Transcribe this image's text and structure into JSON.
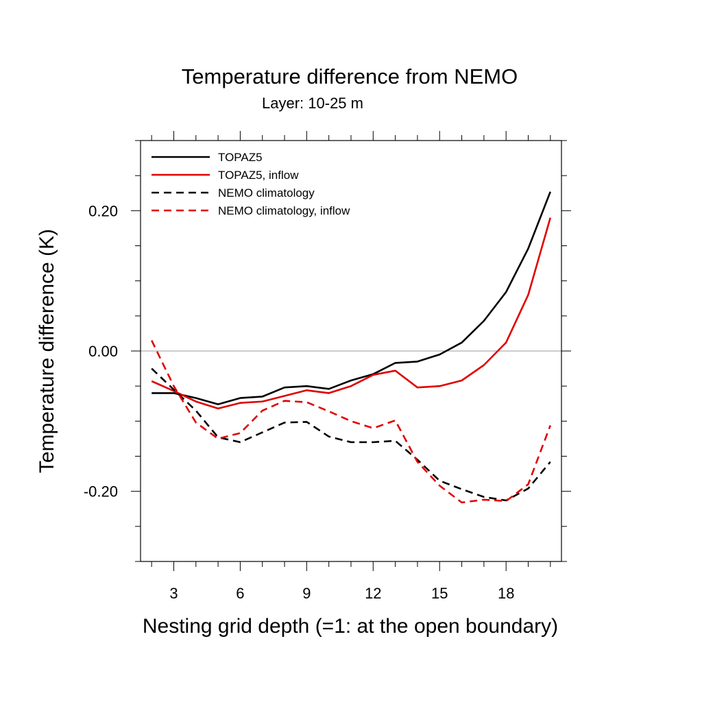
{
  "chart_data": {
    "type": "line",
    "title": "Temperature difference from NEMO",
    "subtitle": "Layer: 10-25 m",
    "xlabel": "Nesting grid depth (=1: at the open boundary)",
    "ylabel": "Temperature difference (K)",
    "xlim": [
      1.5,
      20.5
    ],
    "ylim": [
      -0.3,
      0.3
    ],
    "xticks": [
      3,
      6,
      9,
      12,
      15,
      18
    ],
    "xtick_labels": [
      "3",
      "6",
      "9",
      "12",
      "15",
      "18"
    ],
    "yticks": [
      -0.2,
      0.0,
      0.2
    ],
    "ytick_labels": [
      "-0.20",
      "0.00",
      "0.20"
    ],
    "zero_line": true,
    "grid": false,
    "legend_position": "top-left",
    "x": [
      2,
      3,
      4,
      5,
      6,
      7,
      8,
      9,
      10,
      11,
      12,
      13,
      14,
      15,
      16,
      17,
      18,
      19,
      20
    ],
    "series": [
      {
        "name": "TOPAZ5",
        "color": "#000000",
        "dash": "solid",
        "values": [
          -0.06,
          -0.06,
          -0.067,
          -0.076,
          -0.067,
          -0.065,
          -0.052,
          -0.05,
          -0.054,
          -0.042,
          -0.033,
          -0.017,
          -0.015,
          -0.005,
          0.012,
          0.043,
          0.084,
          0.146,
          0.227
        ]
      },
      {
        "name": "TOPAZ5, inflow",
        "color": "#e00000",
        "dash": "solid",
        "values": [
          -0.043,
          -0.057,
          -0.072,
          -0.082,
          -0.074,
          -0.072,
          -0.064,
          -0.056,
          -0.06,
          -0.05,
          -0.034,
          -0.028,
          -0.052,
          -0.05,
          -0.042,
          -0.02,
          0.012,
          0.08,
          0.19
        ]
      },
      {
        "name": "NEMO climatology",
        "color": "#000000",
        "dash": "dashed",
        "values": [
          -0.025,
          -0.055,
          -0.085,
          -0.123,
          -0.13,
          -0.116,
          -0.102,
          -0.101,
          -0.122,
          -0.13,
          -0.13,
          -0.128,
          -0.155,
          -0.185,
          -0.197,
          -0.208,
          -0.213,
          -0.196,
          -0.158
        ]
      },
      {
        "name": "NEMO climatology, inflow",
        "color": "#e00000",
        "dash": "dashed",
        "values": [
          0.015,
          -0.05,
          -0.102,
          -0.125,
          -0.117,
          -0.085,
          -0.071,
          -0.073,
          -0.086,
          -0.1,
          -0.11,
          -0.099,
          -0.158,
          -0.192,
          -0.216,
          -0.212,
          -0.214,
          -0.19,
          -0.106
        ]
      }
    ]
  }
}
